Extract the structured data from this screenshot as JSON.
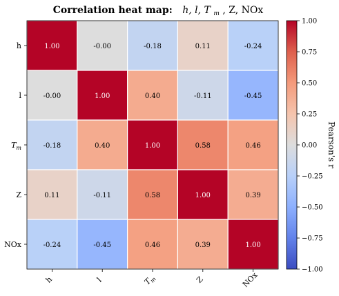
{
  "chart_data": {
    "type": "heatmap",
    "title": {
      "bold": "Correlation heat map:",
      "vars": "h, l, T",
      "vars_sub": "m",
      "tail": ", Z, NOx"
    },
    "rows": [
      "h",
      "l",
      "T_m",
      "Z",
      "NOx"
    ],
    "columns": [
      "h",
      "l",
      "T_m",
      "Z",
      "NOx"
    ],
    "values": [
      [
        1.0,
        -0.0,
        -0.18,
        0.11,
        -0.24
      ],
      [
        -0.0,
        1.0,
        0.4,
        -0.11,
        -0.45
      ],
      [
        -0.18,
        0.4,
        1.0,
        0.58,
        0.46
      ],
      [
        0.11,
        -0.11,
        0.58,
        1.0,
        0.39
      ],
      [
        -0.24,
        -0.45,
        0.46,
        0.39,
        1.0
      ]
    ],
    "cell_labels": [
      [
        "1.00",
        "-0.00",
        "-0.18",
        "0.11",
        "-0.24"
      ],
      [
        "-0.00",
        "1.00",
        "0.40",
        "-0.11",
        "-0.45"
      ],
      [
        "-0.18",
        "0.40",
        "1.00",
        "0.58",
        "0.46"
      ],
      [
        "0.11",
        "-0.11",
        "0.58",
        "1.00",
        "0.39"
      ],
      [
        "-0.24",
        "-0.45",
        "0.46",
        "0.39",
        "1.00"
      ]
    ],
    "colormap": "coolwarm",
    "vmin": -1.0,
    "vmax": 1.0,
    "colorbar": {
      "label": "Pearson's r",
      "ticks": [
        "1.00",
        "0.75",
        "0.50",
        "0.25",
        "0.00",
        "−0.25",
        "−0.50",
        "−0.75",
        "−1.00"
      ],
      "tick_values": [
        1.0,
        0.75,
        0.5,
        0.25,
        0.0,
        -0.25,
        -0.5,
        -0.75,
        -1.0
      ],
      "placement": "right"
    },
    "grid": true
  }
}
